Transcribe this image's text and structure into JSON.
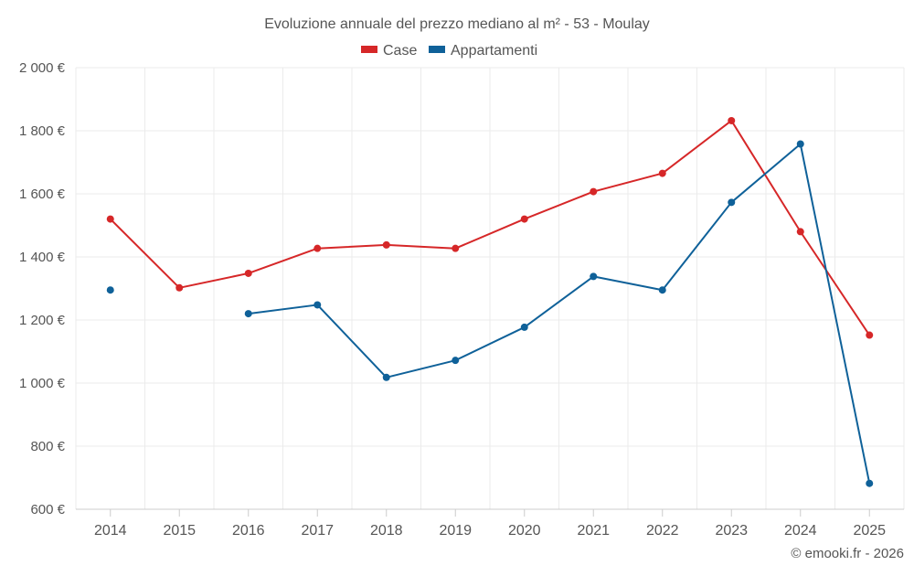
{
  "chart_data": {
    "type": "line",
    "title": "Evoluzione annuale del prezzo mediano al m² - 53 - Moulay",
    "categories": [
      "2014",
      "2015",
      "2016",
      "2017",
      "2018",
      "2019",
      "2020",
      "2021",
      "2022",
      "2023",
      "2024",
      "2025"
    ],
    "series": [
      {
        "name": "Case",
        "color": "#d62728",
        "values": [
          1520,
          1302,
          1348,
          1427,
          1438,
          1427,
          1520,
          1607,
          1665,
          1832,
          1480,
          1152
        ]
      },
      {
        "name": "Appartamenti",
        "color": "#0f6199",
        "values": [
          1295,
          null,
          1220,
          1248,
          1018,
          1072,
          1177,
          1338,
          1295,
          1573,
          1758,
          682
        ]
      }
    ],
    "ylim": [
      600,
      2000
    ],
    "yticks": [
      600,
      800,
      1000,
      1200,
      1400,
      1600,
      1800,
      2000
    ],
    "ytick_labels": [
      "600 €",
      "800 €",
      "1 000 €",
      "1 200 €",
      "1 400 €",
      "1 600 €",
      "1 800 €",
      "2 000 €"
    ],
    "xlabel": "",
    "ylabel": "",
    "grid": true,
    "legend_position": "top-center"
  },
  "footer": {
    "credit": "© emooki.fr - 2026"
  }
}
